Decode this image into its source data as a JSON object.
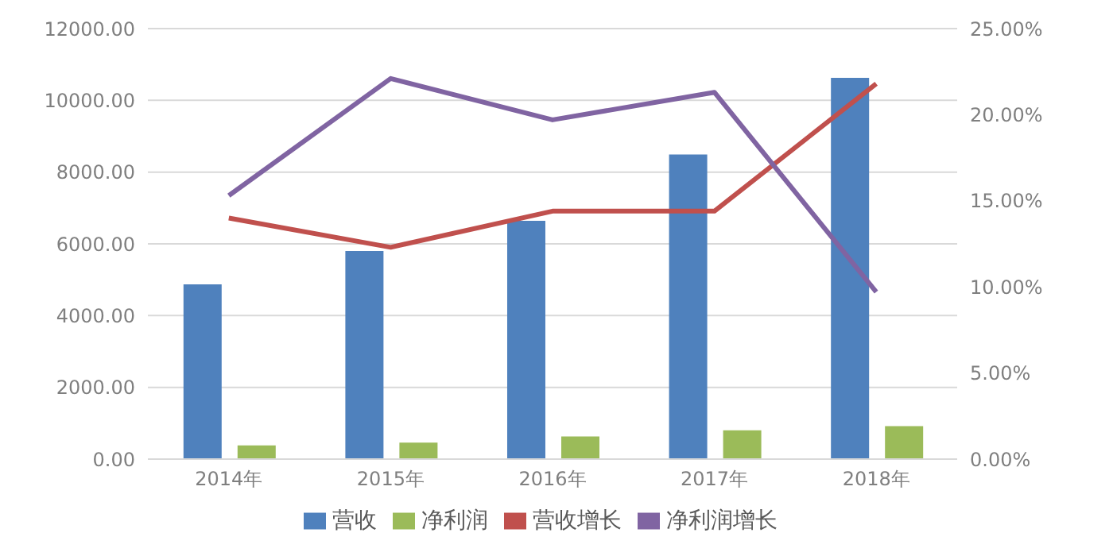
{
  "chart_data": {
    "type": "bar",
    "categories": [
      "2014年",
      "2015年",
      "2016年",
      "2017年",
      "2018年"
    ],
    "series": [
      {
        "name": "营收",
        "color": "#4f81bd",
        "values": [
          4870,
          5800,
          6640,
          8490,
          10630
        ]
      },
      {
        "name": "净利润",
        "color": "#9bbb59",
        "values": [
          380,
          460,
          630,
          800,
          920
        ]
      },
      {
        "name": "营收增长",
        "type": "line",
        "axis": "y2",
        "color": "#c0504d",
        "values": [
          14.0,
          12.3,
          14.4,
          14.4,
          21.8
        ]
      },
      {
        "name": "净利润增长",
        "type": "line",
        "axis": "y2",
        "color": "#8064a2",
        "values": [
          15.3,
          22.1,
          19.7,
          21.3,
          9.7
        ]
      }
    ],
    "ylim": [
      0,
      12000
    ],
    "yticks": [
      {
        "value": 0,
        "label": "0.00"
      },
      {
        "value": 2000,
        "label": "2000.00"
      },
      {
        "value": 4000,
        "label": "4000.00"
      },
      {
        "value": 6000,
        "label": "6000.00"
      },
      {
        "value": 8000,
        "label": "8000.00"
      },
      {
        "value": 10000,
        "label": "10000.00"
      },
      {
        "value": 12000,
        "label": "12000.00"
      }
    ],
    "y2lim": [
      0,
      25
    ],
    "y2ticks": [
      {
        "value": 0,
        "label": "0.00%"
      },
      {
        "value": 5,
        "label": "5.00%"
      },
      {
        "value": 10,
        "label": "10.00%"
      },
      {
        "value": 15,
        "label": "15.00%"
      },
      {
        "value": 20,
        "label": "20.00%"
      },
      {
        "value": 25,
        "label": "25.00%"
      }
    ],
    "grid": "y",
    "legend": "bottom",
    "marker": "none",
    "line_style": "solid"
  }
}
